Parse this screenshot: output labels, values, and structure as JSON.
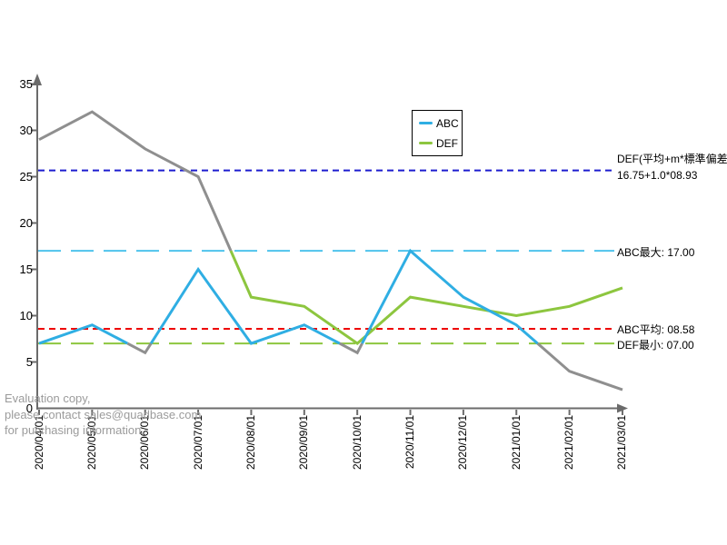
{
  "watermark": {
    "lines": [
      "Evaluation copy,",
      "please contact sales@quadbase.com",
      "for purchasing information."
    ]
  },
  "legend": {
    "items": [
      {
        "label": "ABC"
      },
      {
        "label": "DEF"
      }
    ]
  },
  "chart_data": {
    "type": "line",
    "title": "",
    "xlabel": "",
    "ylabel": "",
    "x_labels": [
      "2020/04/01",
      "2020/05/01",
      "2020/06/01",
      "2020/07/01",
      "2020/08/01",
      "2020/09/01",
      "2020/10/01",
      "2020/11/01",
      "2020/12/01",
      "2021/01/01",
      "2021/02/01",
      "2021/03/01"
    ],
    "y_ticks": [
      0,
      5,
      10,
      15,
      20,
      25,
      30,
      35
    ],
    "ylim": [
      0,
      35
    ],
    "grid": false,
    "legend_position": "top-center-inside",
    "series": [
      {
        "name": "ABC",
        "color": "#2FAEE3",
        "values": [
          7,
          9,
          6,
          15,
          7,
          9,
          6,
          17,
          12,
          9,
          4,
          2
        ],
        "out_of_range_side": "below",
        "range_threshold": 7
      },
      {
        "name": "DEF",
        "color": "#8DC63F",
        "values": [
          29,
          32,
          28,
          25,
          12,
          11,
          7,
          12,
          11,
          10,
          11,
          13
        ],
        "out_of_range_side": "above",
        "range_threshold": 17
      }
    ],
    "out_of_range_color": "#8F8F8F",
    "axis_color": "#6B6B6B",
    "reference_lines": [
      {
        "name": "def-upper-band",
        "label_line1": "DEF(平均+m*標準偏差):",
        "label_line2": "16.75+1.0*08.93",
        "value": 25.68,
        "color": "#1C1CCF",
        "dash": "short"
      },
      {
        "name": "abc-max",
        "label_line1": "ABC最大: 17.00",
        "value": 17,
        "color": "#4EC3EC",
        "dash": "long"
      },
      {
        "name": "abc-average",
        "label_line1": "ABC平均: 08.58",
        "value": 8.58,
        "color": "#EE0000",
        "dash": "short"
      },
      {
        "name": "def-min",
        "label_line1": "DEF最小: 07.00",
        "value": 7,
        "color": "#8DC63F",
        "dash": "long"
      }
    ]
  }
}
